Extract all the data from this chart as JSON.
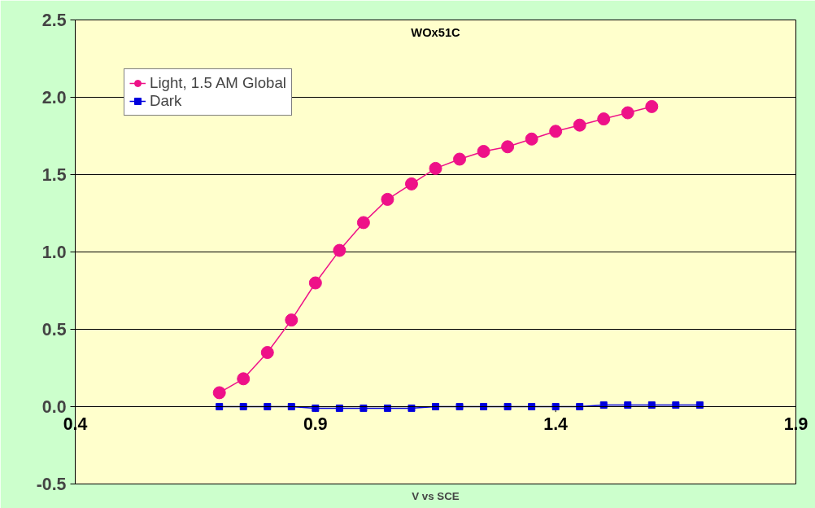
{
  "chart_data": {
    "type": "line",
    "title": "WOx51C",
    "xlabel": "V vs SCE",
    "xlim": [
      0.4,
      1.9
    ],
    "xticks": [
      {
        "value": 0.4,
        "label": "0.4"
      },
      {
        "value": 0.9,
        "label": "0.9"
      },
      {
        "value": 1.4,
        "label": "1.4"
      },
      {
        "value": 1.9,
        "label": "1.9"
      }
    ],
    "ylim": [
      -0.5,
      2.5
    ],
    "yticks": [
      {
        "value": -0.5,
        "label": "-0.5"
      },
      {
        "value": 0,
        "label": "0.0"
      },
      {
        "value": 0.5,
        "label": "0.5"
      },
      {
        "value": 1,
        "label": "1.0"
      },
      {
        "value": 1.5,
        "label": "1.5"
      },
      {
        "value": 2,
        "label": "2.0"
      },
      {
        "value": 2.5,
        "label": "2.5"
      }
    ],
    "grid": "y",
    "legend": "top left",
    "series": [
      {
        "name": "Light, 1.5 AM Global",
        "color": "#ee1188",
        "marker": "circle",
        "x": [
          0.7,
          0.75,
          0.8,
          0.85,
          0.9,
          0.95,
          1.0,
          1.05,
          1.1,
          1.15,
          1.2,
          1.25,
          1.3,
          1.35,
          1.4,
          1.45,
          1.5,
          1.55,
          1.6
        ],
        "values": [
          0.09,
          0.18,
          0.35,
          0.56,
          0.8,
          1.01,
          1.19,
          1.34,
          1.44,
          1.54,
          1.6,
          1.65,
          1.68,
          1.73,
          1.78,
          1.82,
          1.86,
          1.9,
          1.94
        ]
      },
      {
        "name": "Dark",
        "color": "#0000dd",
        "marker": "square",
        "x": [
          0.7,
          0.75,
          0.8,
          0.85,
          0.9,
          0.95,
          1.0,
          1.05,
          1.1,
          1.15,
          1.2,
          1.25,
          1.3,
          1.35,
          1.4,
          1.45,
          1.5,
          1.55,
          1.6,
          1.65,
          1.7
        ],
        "values": [
          0,
          0,
          0,
          0,
          -0.01,
          -0.01,
          -0.01,
          -0.01,
          -0.01,
          0,
          0,
          0,
          0,
          0,
          0,
          0,
          0.01,
          0.01,
          0.01,
          0.01,
          0.01
        ]
      }
    ]
  }
}
